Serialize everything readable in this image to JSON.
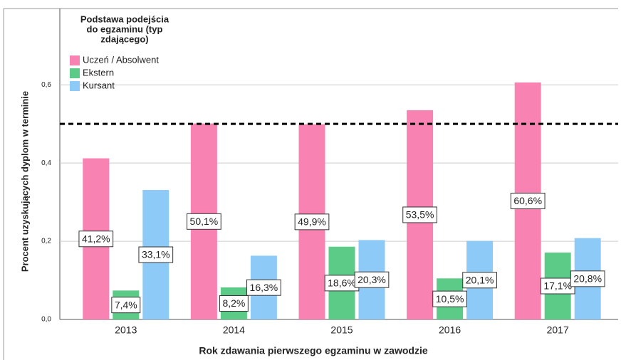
{
  "chart_data": {
    "type": "bar",
    "legend_title": [
      "Podstawa podejścia",
      "do egzaminu (typ",
      "zdającego)"
    ],
    "x_label": "Rok zdawania pierwszego egzaminu w zawodzie",
    "y_label": "Procent uzyskujących dyplom w terminie",
    "categories": [
      "2013",
      "2014",
      "2015",
      "2016",
      "2017"
    ],
    "series": [
      {
        "name": "Uczeń / Absolwent",
        "color": "#f882b2",
        "values": [
          0.412,
          0.501,
          0.499,
          0.535,
          0.606
        ],
        "value_labels": [
          "41,2%",
          "50,1%",
          "49,9%",
          "53,5%",
          "60,6%"
        ]
      },
      {
        "name": "Ekstern",
        "color": "#5ccb88",
        "values": [
          0.074,
          0.082,
          0.186,
          0.105,
          0.171
        ],
        "value_labels": [
          "7,4%",
          "8,2%",
          "18,6%",
          "10,5%",
          "17,1%"
        ]
      },
      {
        "name": "Kursant",
        "color": "#8ecaf7",
        "values": [
          0.331,
          0.163,
          0.203,
          0.201,
          0.208
        ],
        "value_labels": [
          "33,1%",
          "16,3%",
          "20,3%",
          "20,1%",
          "20,8%"
        ]
      }
    ],
    "reference_line": 0.5,
    "ylim": [
      0,
      0.795
    ],
    "yticks": [
      {
        "value": 0,
        "label": "0,0"
      },
      {
        "value": 0.2,
        "label": "0,2"
      },
      {
        "value": 0.4,
        "label": "0,4"
      },
      {
        "value": 0.6,
        "label": "0,6"
      }
    ],
    "grid": true,
    "legend": "upper left"
  }
}
